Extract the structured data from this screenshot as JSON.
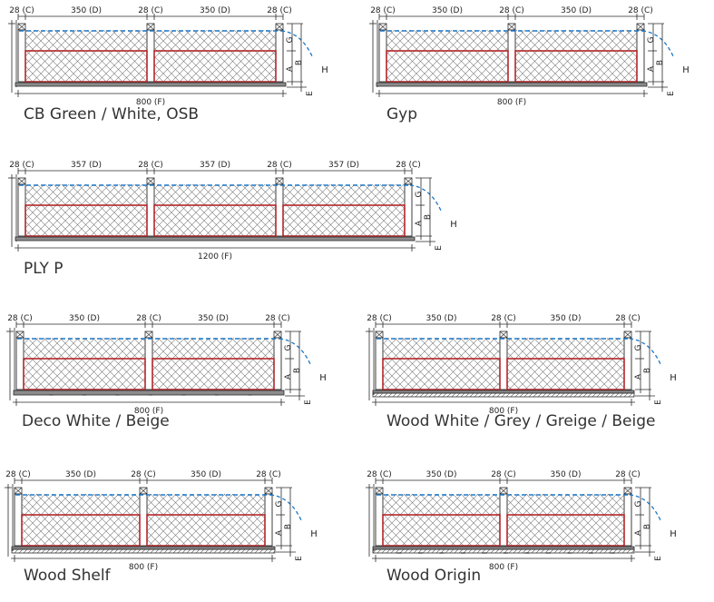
{
  "colors": {
    "line": "#2a2a2a",
    "hatch": "#7a7a7a",
    "membrane_red": "#b3262a",
    "vapour_blue": "#1f78c8",
    "board_grey": "#8c8c8c",
    "caption": "#333333"
  },
  "panels": [
    {
      "id": "cb-green",
      "caption": "CB Green / White, OSB",
      "dims": {
        "stud": "28 (C)",
        "bay": "350 (D)",
        "total": "800 (F)"
      },
      "letters": {
        "a": "A",
        "b": "B",
        "g": "G",
        "h": "H",
        "e": "E"
      },
      "bays": 2,
      "finish": "plain"
    },
    {
      "id": "gyp",
      "caption": "Gyp",
      "dims": {
        "stud": "28 (C)",
        "bay": "350 (D)",
        "total": "800 (F)"
      },
      "letters": {
        "a": "A",
        "b": "B",
        "g": "G",
        "h": "H",
        "e": "E"
      },
      "bays": 2,
      "finish": "plain"
    },
    {
      "id": "ply-p",
      "caption": "PLY P",
      "dims": {
        "stud": "28 (C)",
        "bay": "357 (D)",
        "total": "1200 (F)"
      },
      "letters": {
        "a": "A",
        "b": "B",
        "g": "G",
        "h": "H",
        "e": "E"
      },
      "bays": 3,
      "finish": "plain"
    },
    {
      "id": "deco",
      "caption": "Deco White / Beige",
      "dims": {
        "stud": "28 (C)",
        "bay": "350 (D)",
        "total": "800 (F)"
      },
      "letters": {
        "a": "A",
        "b": "B",
        "g": "G",
        "h": "H",
        "e": "E"
      },
      "bays": 2,
      "finish": "deco"
    },
    {
      "id": "wood-white",
      "caption": "Wood White / Grey / Greige / Beige",
      "dims": {
        "stud": "28 (C)",
        "bay": "350 (D)",
        "total": "800 (F)"
      },
      "letters": {
        "a": "A",
        "b": "B",
        "g": "G",
        "h": "H",
        "e": "E"
      },
      "bays": 2,
      "finish": "wood"
    },
    {
      "id": "wood-shelf",
      "caption": "Wood Shelf",
      "dims": {
        "stud": "28 (C)",
        "bay": "350 (D)",
        "total": "800 (F)"
      },
      "letters": {
        "a": "A",
        "b": "B",
        "g": "G",
        "h": "H",
        "e": "E"
      },
      "bays": 2,
      "finish": "wood"
    },
    {
      "id": "wood-origin",
      "caption": "Wood Origin",
      "dims": {
        "stud": "28 (C)",
        "bay": "350 (D)",
        "total": "800 (F)"
      },
      "letters": {
        "a": "A",
        "b": "B",
        "g": "G",
        "h": "H",
        "e": "E"
      },
      "bays": 2,
      "finish": "wood-grooved"
    }
  ]
}
